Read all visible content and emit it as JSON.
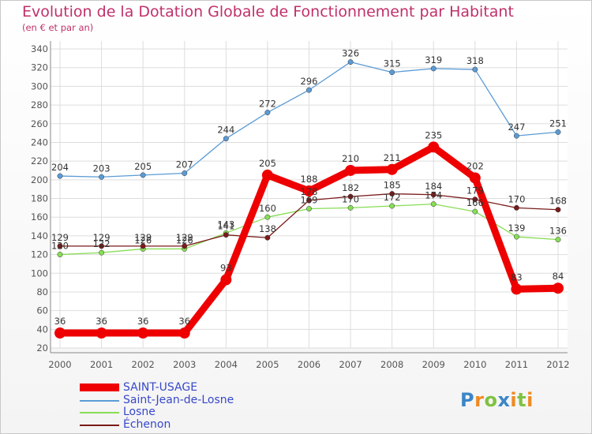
{
  "chart_data": {
    "type": "line",
    "title": "Evolution de la Dotation Globale de Fonctionnement par Habitant",
    "subtitle": "(en € et par an)",
    "x": [
      "2000",
      "2001",
      "2002",
      "2003",
      "2004",
      "2005",
      "2006",
      "2007",
      "2008",
      "2009",
      "2010",
      "2011",
      "2012"
    ],
    "ylim": [
      20,
      340
    ],
    "yticks": [
      20,
      40,
      60,
      80,
      100,
      120,
      140,
      160,
      180,
      200,
      220,
      240,
      260,
      280,
      300,
      320,
      340
    ],
    "grid": true,
    "legend_position": "bottom-left",
    "series": [
      {
        "name": "SAINT-USAGE",
        "color": "#ee0000",
        "values": [
          36,
          36,
          36,
          36,
          93,
          205,
          188,
          210,
          211,
          235,
          202,
          83,
          84
        ],
        "labels": [
          "36",
          "36",
          "36",
          "36",
          "93",
          "205",
          "188",
          "210",
          "211",
          "235",
          "202",
          "83",
          "84"
        ]
      },
      {
        "name": "Saint-Jean-de-Losne",
        "color": "#5b9bd5",
        "values": [
          204,
          203,
          205,
          207,
          244,
          272,
          296,
          326,
          315,
          319,
          318,
          247,
          251
        ],
        "labels": [
          "204",
          "203",
          "205",
          "207",
          "244",
          "272",
          "296",
          "326",
          "315",
          "319",
          "318",
          "247",
          "251"
        ]
      },
      {
        "name": "Losne",
        "color": "#88dd55",
        "values": [
          120,
          122,
          126,
          126,
          143,
          160,
          169,
          170,
          172,
          174,
          166,
          139,
          136
        ],
        "labels": [
          "120",
          "122",
          "126",
          "126",
          "143",
          "160",
          "169",
          "170",
          "172",
          "174",
          "166",
          "139",
          "136"
        ]
      },
      {
        "name": "Échenon",
        "color": "#7b1b1b",
        "values": [
          129,
          129,
          129,
          129,
          141,
          138,
          178,
          182,
          185,
          184,
          179,
          170,
          168
        ],
        "labels": [
          "129",
          "129",
          "129",
          "129",
          "141",
          "138",
          "178",
          "182",
          "185",
          "184",
          "179",
          "170",
          "168"
        ]
      }
    ]
  },
  "logo": {
    "text": "Proxiti",
    "letters": [
      "P",
      "r",
      "o",
      "x",
      "i",
      "t",
      "i"
    ]
  }
}
